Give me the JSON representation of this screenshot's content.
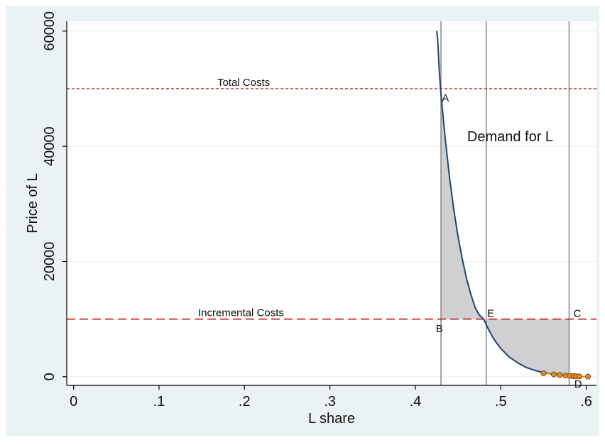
{
  "chart_data": {
    "type": "line",
    "xlabel": "L share",
    "ylabel": "Price of L",
    "xlim": [
      -0.008,
      0.612
    ],
    "ylim": [
      -1500,
      61700
    ],
    "x_ticks": [
      {
        "value": 0,
        "label": "0"
      },
      {
        "value": 0.1,
        "label": ".1"
      },
      {
        "value": 0.2,
        "label": ".2"
      },
      {
        "value": 0.3,
        "label": ".3"
      },
      {
        "value": 0.4,
        "label": ".4"
      },
      {
        "value": 0.5,
        "label": ".5"
      },
      {
        "value": 0.6,
        "label": ".6"
      }
    ],
    "y_ticks": [
      {
        "value": 0,
        "label": "0"
      },
      {
        "value": 20000,
        "label": "20000"
      },
      {
        "value": 40000,
        "label": "40000"
      },
      {
        "value": 60000,
        "label": "60000"
      }
    ],
    "grid": true,
    "demand_curve": {
      "label": "Demand for L",
      "x": [
        0.425,
        0.426,
        0.427,
        0.428,
        0.43,
        0.435,
        0.44,
        0.445,
        0.45,
        0.455,
        0.46,
        0.465,
        0.47,
        0.475,
        0.48,
        0.485,
        0.49,
        0.495,
        0.5,
        0.51,
        0.52,
        0.53,
        0.54,
        0.55,
        0.56,
        0.57,
        0.578
      ],
      "y": [
        60000,
        58800,
        56200,
        53000,
        49000,
        41300,
        34600,
        29000,
        24300,
        20400,
        17000,
        14300,
        12000,
        10700,
        10000,
        8400,
        7000,
        5900,
        4900,
        3400,
        2400,
        1600,
        1100,
        700,
        450,
        300,
        200
      ]
    },
    "observed_points": {
      "x": [
        0.55,
        0.562,
        0.569,
        0.576,
        0.581,
        0.585,
        0.588,
        0.592,
        0.602
      ],
      "y": [
        600,
        400,
        300,
        200,
        150,
        100,
        80,
        50,
        20
      ],
      "color": "#e8891f"
    },
    "horizontal_lines": [
      {
        "label": "Total Costs",
        "y": 50000,
        "style": "dotted",
        "color": "#c0282d"
      },
      {
        "label": "Incremental Costs",
        "y": 10000,
        "style": "dashed",
        "color": "#c0282d"
      }
    ],
    "vertical_lines": [
      0.43,
      0.483,
      0.58
    ],
    "shaded_regions": [
      {
        "x_from": 0.43,
        "x_to": 0.483,
        "y_top": "demand",
        "y_bottom": 10000
      },
      {
        "x_from": 0.483,
        "x_to": 0.58,
        "y_top": 10000,
        "y_bottom": "demand"
      }
    ],
    "point_labels": [
      {
        "text": "A",
        "x": 0.431,
        "y": 48500
      },
      {
        "text": "B",
        "x": 0.424,
        "y": 8500
      },
      {
        "text": "E",
        "x": 0.484,
        "y": 11100
      },
      {
        "text": "C",
        "x": 0.585,
        "y": 11100
      },
      {
        "text": "D",
        "x": 0.586,
        "y": -1100
      }
    ],
    "colors": {
      "background_outer": "#eaf2f3",
      "plot_background": "#ffffff",
      "curve": "#1a476f",
      "shade": "#d0d0d3",
      "vline": "#8c8c8c",
      "grid": "#eaf2f3"
    }
  }
}
